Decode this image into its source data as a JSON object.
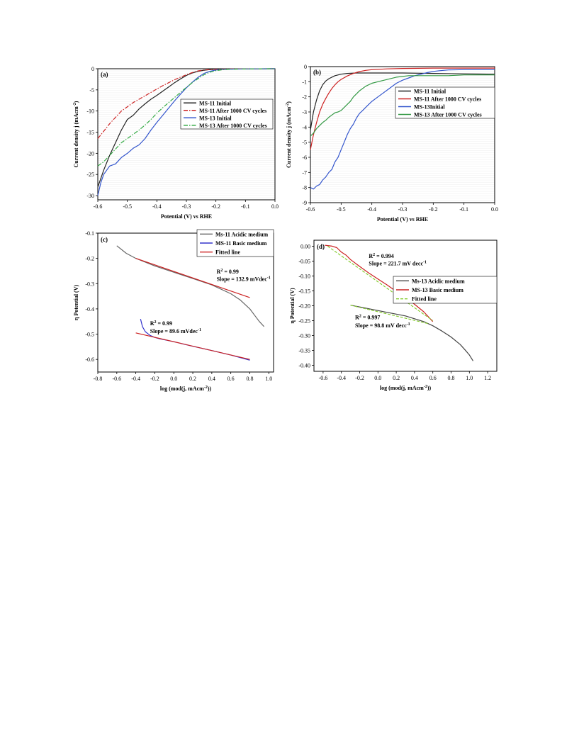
{
  "chart_data": [
    {
      "id": "a",
      "type": "line",
      "panel_label": "(a)",
      "xlabel": "Potential (V) vs RHE",
      "ylabel": "Current density j (mAcm⁻²)",
      "xlim": [
        -0.6,
        0.0
      ],
      "ylim": [
        -31,
        0
      ],
      "xticks": [
        -0.6,
        -0.5,
        -0.4,
        -0.3,
        -0.2,
        -0.1,
        0.0
      ],
      "xtick_labels": [
        "-0.6",
        "-0.5",
        "-0.4",
        "-0.3",
        "-0.2",
        "-0.1",
        "0.0"
      ],
      "yticks": [
        0,
        -5,
        -10,
        -15,
        -20,
        -25,
        -30
      ],
      "ytick_labels": [
        "0",
        "-5",
        "-10",
        "-15",
        "-20",
        "-25",
        "-30"
      ],
      "grid": true,
      "legend_position": "right",
      "series": [
        {
          "name": "MS-11 Initial",
          "color": "#222222",
          "dash": "solid",
          "x": [
            -0.6,
            -0.58,
            -0.56,
            -0.54,
            -0.52,
            -0.5,
            -0.48,
            -0.46,
            -0.44,
            -0.42,
            -0.4,
            -0.38,
            -0.36,
            -0.34,
            -0.32,
            -0.3,
            -0.28,
            -0.26,
            -0.24,
            -0.22,
            -0.2,
            -0.15,
            -0.1,
            -0.05,
            0.0
          ],
          "y": [
            -28.0,
            -24.0,
            -20.5,
            -17.5,
            -14.5,
            -12.0,
            -11.0,
            -9.5,
            -8.3,
            -7.2,
            -6.3,
            -5.3,
            -4.3,
            -3.3,
            -2.4,
            -1.6,
            -1.0,
            -0.6,
            -0.35,
            -0.2,
            -0.12,
            -0.06,
            -0.03,
            -0.02,
            0.0
          ]
        },
        {
          "name": "MS-11 After 1000 CV cycles",
          "color": "#cc2222",
          "dash": "dashdot",
          "x": [
            -0.6,
            -0.58,
            -0.56,
            -0.54,
            -0.52,
            -0.5,
            -0.48,
            -0.46,
            -0.44,
            -0.42,
            -0.4,
            -0.38,
            -0.36,
            -0.34,
            -0.32,
            -0.3,
            -0.28,
            -0.26,
            -0.24,
            -0.22,
            -0.2,
            -0.15,
            -0.1,
            -0.05,
            0.0
          ],
          "y": [
            -16.5,
            -14.8,
            -13.0,
            -11.5,
            -10.0,
            -9.0,
            -8.0,
            -7.2,
            -6.4,
            -5.6,
            -4.8,
            -4.0,
            -3.3,
            -2.6,
            -2.0,
            -1.4,
            -0.9,
            -0.5,
            -0.3,
            -0.2,
            -0.12,
            -0.06,
            -0.03,
            -0.02,
            0.0
          ]
        },
        {
          "name": "MS-13 Initial",
          "color": "#3355cc",
          "dash": "solid",
          "x": [
            -0.6,
            -0.59,
            -0.58,
            -0.56,
            -0.54,
            -0.52,
            -0.5,
            -0.48,
            -0.46,
            -0.44,
            -0.42,
            -0.4,
            -0.38,
            -0.36,
            -0.34,
            -0.32,
            -0.3,
            -0.28,
            -0.26,
            -0.24,
            -0.22,
            -0.2,
            -0.18,
            -0.15,
            -0.1,
            -0.05,
            0.0
          ],
          "y": [
            -30.0,
            -27.0,
            -25.0,
            -23.0,
            -22.5,
            -21.0,
            -20.0,
            -18.8,
            -18.0,
            -16.5,
            -14.5,
            -12.7,
            -11.0,
            -9.3,
            -7.6,
            -6.0,
            -4.5,
            -3.2,
            -2.0,
            -1.1,
            -0.6,
            -0.3,
            -0.18,
            -0.1,
            -0.05,
            -0.02,
            0.0
          ]
        },
        {
          "name": "MS-13 After 1000 CV cycles",
          "color": "#33aa44",
          "dash": "dashdot",
          "x": [
            -0.6,
            -0.58,
            -0.56,
            -0.54,
            -0.52,
            -0.5,
            -0.48,
            -0.46,
            -0.44,
            -0.42,
            -0.4,
            -0.38,
            -0.36,
            -0.34,
            -0.32,
            -0.3,
            -0.28,
            -0.26,
            -0.24,
            -0.22,
            -0.2,
            -0.18,
            -0.15,
            -0.1,
            -0.05,
            0.0
          ],
          "y": [
            -23.0,
            -22.0,
            -20.5,
            -19.0,
            -17.5,
            -16.5,
            -15.5,
            -14.5,
            -13.3,
            -12.0,
            -10.5,
            -9.2,
            -8.0,
            -6.8,
            -5.6,
            -4.4,
            -3.3,
            -2.3,
            -1.4,
            -0.8,
            -0.45,
            -0.25,
            -0.12,
            -0.05,
            -0.02,
            0.0
          ]
        }
      ]
    },
    {
      "id": "b",
      "type": "line",
      "panel_label": "(b)",
      "xlabel": "Potential (V) vs RHE",
      "ylabel": "Current density j (mAcm⁻²)",
      "xlim": [
        -0.6,
        0.0
      ],
      "ylim": [
        -9,
        0
      ],
      "xticks": [
        -0.6,
        -0.5,
        -0.4,
        -0.3,
        -0.2,
        -0.1,
        0.0
      ],
      "xtick_labels": [
        "-0.6",
        "-0.5",
        "-0.4",
        "-0.3",
        "-0.2",
        "-0.1",
        "0.0"
      ],
      "yticks": [
        0,
        -1,
        -2,
        -3,
        -4,
        -5,
        -6,
        -7,
        -8,
        -9
      ],
      "ytick_labels": [
        "0",
        "-1",
        "-2",
        "-3",
        "-4",
        "-5",
        "-6",
        "-7",
        "-8",
        "-9"
      ],
      "grid": true,
      "legend_position": "right",
      "series": [
        {
          "name": "MS-11 Initial",
          "color": "#222222",
          "dash": "solid",
          "x": [
            -0.6,
            -0.59,
            -0.58,
            -0.57,
            -0.56,
            -0.55,
            -0.54,
            -0.53,
            -0.52,
            -0.5,
            -0.48,
            -0.45,
            -0.4,
            -0.3,
            -0.2,
            -0.1,
            0.0
          ],
          "y": [
            -4.2,
            -3.0,
            -2.2,
            -1.6,
            -1.2,
            -0.95,
            -0.8,
            -0.7,
            -0.6,
            -0.5,
            -0.45,
            -0.42,
            -0.42,
            -0.42,
            -0.45,
            -0.48,
            -0.5
          ]
        },
        {
          "name": "MS-11 After 1000 CV cycles",
          "color": "#cc2222",
          "dash": "solid",
          "x": [
            -0.6,
            -0.59,
            -0.58,
            -0.57,
            -0.56,
            -0.55,
            -0.54,
            -0.53,
            -0.52,
            -0.51,
            -0.5,
            -0.48,
            -0.46,
            -0.44,
            -0.42,
            -0.4,
            -0.35,
            -0.3,
            -0.2,
            -0.1,
            0.0
          ],
          "y": [
            -5.5,
            -4.5,
            -3.7,
            -3.0,
            -2.5,
            -2.1,
            -1.75,
            -1.45,
            -1.2,
            -1.0,
            -0.85,
            -0.62,
            -0.45,
            -0.33,
            -0.25,
            -0.2,
            -0.15,
            -0.12,
            -0.1,
            -0.1,
            -0.1
          ]
        },
        {
          "name": "MS-13Initial",
          "color": "#3355cc",
          "dash": "solid",
          "x": [
            -0.6,
            -0.59,
            -0.58,
            -0.57,
            -0.56,
            -0.55,
            -0.54,
            -0.53,
            -0.52,
            -0.51,
            -0.5,
            -0.49,
            -0.48,
            -0.47,
            -0.46,
            -0.45,
            -0.44,
            -0.43,
            -0.42,
            -0.41,
            -0.4,
            -0.38,
            -0.36,
            -0.34,
            -0.32,
            -0.3,
            -0.28,
            -0.26,
            -0.24,
            -0.22,
            -0.2,
            -0.18,
            -0.15,
            -0.1,
            -0.05,
            0.0
          ],
          "y": [
            -8.0,
            -8.1,
            -7.9,
            -7.8,
            -7.5,
            -7.3,
            -7.0,
            -6.8,
            -6.3,
            -6.0,
            -5.5,
            -5.0,
            -4.5,
            -4.1,
            -3.8,
            -3.4,
            -3.1,
            -2.9,
            -2.7,
            -2.5,
            -2.3,
            -2.0,
            -1.7,
            -1.4,
            -1.1,
            -0.9,
            -0.75,
            -0.6,
            -0.5,
            -0.4,
            -0.32,
            -0.27,
            -0.22,
            -0.2,
            -0.2,
            -0.2
          ]
        },
        {
          "name": "MS-13 After 1000 CV cycles",
          "color": "#339944",
          "dash": "solid",
          "x": [
            -0.6,
            -0.59,
            -0.58,
            -0.57,
            -0.56,
            -0.55,
            -0.54,
            -0.53,
            -0.52,
            -0.51,
            -0.5,
            -0.49,
            -0.48,
            -0.47,
            -0.46,
            -0.45,
            -0.44,
            -0.43,
            -0.42,
            -0.4,
            -0.38,
            -0.36,
            -0.34,
            -0.32,
            -0.3,
            -0.28,
            -0.25,
            -0.2,
            -0.15,
            -0.1,
            -0.05,
            0.0
          ],
          "y": [
            -4.6,
            -4.4,
            -4.1,
            -3.9,
            -3.7,
            -3.55,
            -3.35,
            -3.2,
            -3.05,
            -3.0,
            -2.9,
            -2.7,
            -2.5,
            -2.3,
            -2.0,
            -1.8,
            -1.6,
            -1.45,
            -1.3,
            -1.1,
            -1.0,
            -0.9,
            -0.8,
            -0.7,
            -0.65,
            -0.6,
            -0.6,
            -0.6,
            -0.6,
            -0.55,
            -0.55,
            -0.55
          ]
        }
      ]
    },
    {
      "id": "c",
      "type": "line",
      "panel_label": "(c)",
      "xlabel": "log (mod(j, mAcm⁻²))",
      "ylabel": "η Potential (V)",
      "xlim": [
        -0.8,
        1.05
      ],
      "ylim": [
        -0.65,
        -0.1
      ],
      "xticks": [
        -0.8,
        -0.6,
        -0.4,
        -0.2,
        0.0,
        0.2,
        0.4,
        0.6,
        0.8,
        1.0
      ],
      "xtick_labels": [
        "-0.8",
        "-0.6",
        "-0.4",
        "-0.2",
        "0.0",
        "0.2",
        "0.4",
        "0.6",
        "0.8",
        "1.0"
      ],
      "yticks": [
        -0.1,
        -0.2,
        -0.3,
        -0.4,
        -0.5,
        -0.6
      ],
      "ytick_labels": [
        "-0.1",
        "-0.2",
        "-0.3",
        "-0.4",
        "-0.5",
        "-0.6"
      ],
      "grid": false,
      "legend_position": "top-right",
      "series": [
        {
          "name": "Ms-11 Acidic medium",
          "color": "#666666",
          "dash": "solid",
          "x": [
            -0.6,
            -0.5,
            -0.4,
            -0.3,
            -0.2,
            0.0,
            0.2,
            0.4,
            0.6,
            0.7,
            0.8,
            0.85,
            0.9,
            0.95
          ],
          "y": [
            -0.15,
            -0.18,
            -0.2,
            -0.215,
            -0.23,
            -0.255,
            -0.28,
            -0.305,
            -0.34,
            -0.365,
            -0.4,
            -0.425,
            -0.45,
            -0.47
          ]
        },
        {
          "name": "MS-11 Basic medium",
          "color": "#3333cc",
          "dash": "solid",
          "x": [
            -0.35,
            -0.33,
            -0.3,
            -0.25,
            -0.2,
            -0.15,
            -0.1,
            0.0,
            0.2,
            0.4,
            0.6,
            0.8
          ],
          "y": [
            -0.44,
            -0.47,
            -0.49,
            -0.505,
            -0.513,
            -0.518,
            -0.522,
            -0.53,
            -0.548,
            -0.565,
            -0.583,
            -0.603
          ]
        },
        {
          "name": "Fitted line",
          "color": "#cc2222",
          "dash": "solid",
          "x": [
            -0.4,
            0.8
          ],
          "y": [
            -0.2,
            -0.355
          ]
        },
        {
          "name": "",
          "color": "#cc2222",
          "dash": "solid",
          "x": [
            -0.4,
            0.8
          ],
          "y": [
            -0.495,
            -0.6
          ]
        }
      ],
      "annotations": [
        {
          "text": "R² = 0.99",
          "x": 0.45,
          "y": -0.26
        },
        {
          "text": "Slope = 132.9 mVdec⁻¹",
          "x": 0.45,
          "y": -0.29
        },
        {
          "text": "R² = 0.99",
          "x": -0.25,
          "y": -0.465
        },
        {
          "text": "Slope = 89.6 mVdec⁻¹",
          "x": -0.25,
          "y": -0.495
        }
      ]
    },
    {
      "id": "d",
      "type": "line",
      "panel_label": "(d)",
      "xlabel": "log (mod(j, mAcm⁻²))",
      "ylabel": "η Potential (V)",
      "xlim": [
        -0.7,
        1.3
      ],
      "ylim": [
        -0.42,
        0.02
      ],
      "xticks": [
        -0.6,
        -0.4,
        -0.2,
        0.0,
        0.2,
        0.4,
        0.6,
        0.8,
        1.0,
        1.2
      ],
      "xtick_labels": [
        "-0.6",
        "-0.4",
        "-0.2",
        "0.0",
        "0.2",
        "0.4",
        "0.6",
        "0.8",
        "1.0",
        "1.2"
      ],
      "yticks": [
        0.0,
        -0.05,
        -0.1,
        -0.15,
        -0.2,
        -0.25,
        -0.3,
        -0.35,
        -0.4
      ],
      "ytick_labels": [
        "0.00",
        "-0.05",
        "-0.10",
        "-0.15",
        "-0.20",
        "-0.25",
        "-0.30",
        "-0.35",
        "-0.40"
      ],
      "grid": false,
      "legend_position": "right",
      "series": [
        {
          "name": "Ms-13 Acidic medium",
          "color": "#444444",
          "dash": "solid",
          "x": [
            -0.3,
            -0.1,
            0.1,
            0.3,
            0.5,
            0.6,
            0.7,
            0.8,
            0.9,
            0.95,
            1.0,
            1.04
          ],
          "y": [
            -0.198,
            -0.21,
            -0.222,
            -0.234,
            -0.253,
            -0.267,
            -0.285,
            -0.305,
            -0.33,
            -0.347,
            -0.365,
            -0.385
          ]
        },
        {
          "name": "MS-13 Basic medium",
          "color": "#cc2222",
          "dash": "solid",
          "x": [
            -0.58,
            -0.5,
            -0.45,
            -0.4,
            -0.35,
            -0.3,
            -0.2,
            -0.1,
            0.0,
            0.1,
            0.2,
            0.3,
            0.4,
            0.5,
            0.6
          ],
          "y": [
            0.003,
            0.0,
            -0.005,
            -0.02,
            -0.03,
            -0.045,
            -0.068,
            -0.09,
            -0.11,
            -0.13,
            -0.152,
            -0.172,
            -0.195,
            -0.22,
            -0.253
          ]
        },
        {
          "name": "Fitted line",
          "color": "#88cc33",
          "dash": "dashed",
          "x": [
            -0.55,
            0.6
          ],
          "y": [
            0.0,
            -0.25
          ]
        },
        {
          "name": "",
          "color": "#88cc33",
          "dash": "dashed",
          "x": [
            -0.3,
            0.55
          ],
          "y": [
            -0.198,
            -0.26
          ]
        }
      ],
      "annotations": [
        {
          "text": "R² = 0.994",
          "x": -0.1,
          "y": -0.04
        },
        {
          "text": "Slope = 221.7 mV decc⁻¹",
          "x": -0.1,
          "y": -0.065
        },
        {
          "text": "R² = 0.997",
          "x": -0.25,
          "y": -0.245
        },
        {
          "text": "Slope = 98.8 mV decc⁻¹",
          "x": -0.25,
          "y": -0.272
        }
      ]
    }
  ]
}
